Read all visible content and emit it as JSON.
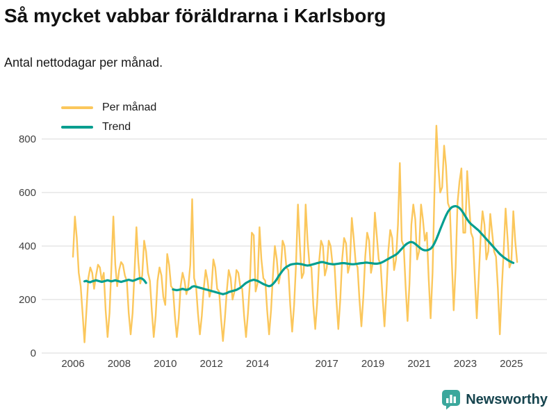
{
  "title": "Så mycket vabbar föräldrarna i Karlsborg",
  "subtitle": "Antal nettodagar per månad.",
  "legend": {
    "monthly": "Per månad",
    "trend": "Trend"
  },
  "brand": {
    "name": "Newsworthy",
    "icon": "bar-chart-marker-icon",
    "logo_color": "#3ba79c"
  },
  "colors": {
    "monthly": "#fbc75c",
    "trend": "#009e8f",
    "grid": "#d9d9d9",
    "axis_text": "#404040",
    "title_text": "#111111"
  },
  "chart_data": {
    "type": "line",
    "title": "Så mycket vabbar föräldrarna i Karlsborg",
    "subtitle": "Antal nettodagar per månad.",
    "xlabel": "",
    "ylabel": "",
    "x_start": "2006-01",
    "x_interval": "month",
    "x_ticks": [
      2006,
      2008,
      2010,
      2012,
      2014,
      2017,
      2019,
      2021,
      2023,
      2025
    ],
    "y_ticks": [
      0,
      200,
      400,
      600,
      800
    ],
    "ylim": [
      0,
      880
    ],
    "grid": "horizontal",
    "legend_position": "top-left",
    "series": [
      {
        "name": "Per månad",
        "color": "#fbc75c",
        "values": [
          360,
          510,
          430,
          300,
          250,
          150,
          40,
          160,
          280,
          320,
          300,
          240,
          290,
          330,
          320,
          270,
          300,
          160,
          60,
          150,
          320,
          510,
          330,
          250,
          310,
          340,
          330,
          290,
          270,
          150,
          70,
          150,
          300,
          470,
          340,
          260,
          290,
          420,
          380,
          300,
          270,
          160,
          60,
          140,
          270,
          320,
          290,
          210,
          180,
          370,
          330,
          250,
          240,
          140,
          60,
          130,
          250,
          300,
          270,
          220,
          250,
          330,
          575,
          280,
          250,
          150,
          70,
          140,
          240,
          310,
          270,
          210,
          240,
          350,
          320,
          240,
          230,
          130,
          45,
          130,
          230,
          310,
          280,
          200,
          230,
          310,
          300,
          250,
          240,
          140,
          60,
          150,
          260,
          450,
          440,
          230,
          260,
          470,
          350,
          280,
          270,
          160,
          70,
          160,
          290,
          400,
          350,
          260,
          300,
          420,
          400,
          320,
          310,
          180,
          80,
          180,
          330,
          555,
          400,
          280,
          300,
          555,
          420,
          330,
          320,
          180,
          90,
          190,
          340,
          420,
          400,
          290,
          320,
          420,
          400,
          330,
          330,
          200,
          90,
          200,
          350,
          430,
          410,
          300,
          330,
          505,
          430,
          340,
          320,
          200,
          100,
          210,
          360,
          450,
          420,
          300,
          340,
          525,
          440,
          350,
          330,
          210,
          100,
          230,
          380,
          460,
          430,
          310,
          350,
          480,
          710,
          420,
          400,
          250,
          120,
          260,
          480,
          555,
          500,
          350,
          380,
          555,
          500,
          420,
          450,
          280,
          130,
          300,
          600,
          850,
          700,
          600,
          620,
          775,
          700,
          560,
          540,
          350,
          160,
          320,
          560,
          640,
          690,
          450,
          450,
          680,
          560,
          450,
          430,
          280,
          130,
          280,
          430,
          530,
          480,
          350,
          380,
          520,
          450,
          380,
          360,
          240,
          70,
          240,
          380,
          540,
          430,
          320,
          340,
          530,
          420,
          340
        ]
      },
      {
        "name": "Trend",
        "color": "#009e8f",
        "values": [
          null,
          null,
          null,
          null,
          null,
          null,
          268,
          270,
          266,
          265,
          268,
          270,
          272,
          270,
          268,
          266,
          268,
          270,
          272,
          270,
          268,
          270,
          272,
          270,
          268,
          266,
          268,
          270,
          272,
          274,
          272,
          270,
          272,
          275,
          278,
          280,
          278,
          272,
          262,
          null,
          null,
          null,
          null,
          null,
          null,
          null,
          null,
          null,
          null,
          null,
          null,
          null,
          238,
          236,
          235,
          236,
          238,
          240,
          238,
          236,
          238,
          242,
          248,
          250,
          248,
          246,
          244,
          242,
          240,
          238,
          236,
          234,
          232,
          230,
          228,
          226,
          224,
          222,
          220,
          222,
          224,
          228,
          230,
          232,
          234,
          236,
          240,
          244,
          250,
          256,
          262,
          266,
          270,
          272,
          274,
          272,
          270,
          266,
          262,
          258,
          255,
          252,
          250,
          252,
          258,
          266,
          276,
          288,
          298,
          308,
          316,
          322,
          326,
          330,
          332,
          333,
          334,
          334,
          333,
          332,
          330,
          328,
          327,
          328,
          330,
          332,
          334,
          336,
          338,
          340,
          340,
          338,
          336,
          334,
          333,
          332,
          332,
          333,
          334,
          335,
          336,
          336,
          335,
          334,
          333,
          332,
          332,
          333,
          334,
          335,
          336,
          337,
          338,
          338,
          337,
          336,
          335,
          334,
          334,
          335,
          337,
          340,
          344,
          348,
          352,
          356,
          360,
          364,
          368,
          374,
          382,
          390,
          398,
          405,
          410,
          414,
          415,
          413,
          408,
          402,
          396,
          390,
          386,
          384,
          384,
          386,
          390,
          398,
          410,
          426,
          444,
          462,
          480,
          498,
          514,
          528,
          538,
          545,
          548,
          549,
          547,
          542,
          534,
          524,
          512,
          500,
          490,
          482,
          476,
          470,
          464,
          458,
          450,
          442,
          434,
          426,
          418,
          410,
          402,
          394,
          386,
          378,
          370,
          364,
          358,
          353,
          348,
          344,
          340,
          337,
          null,
          null
        ]
      }
    ]
  }
}
